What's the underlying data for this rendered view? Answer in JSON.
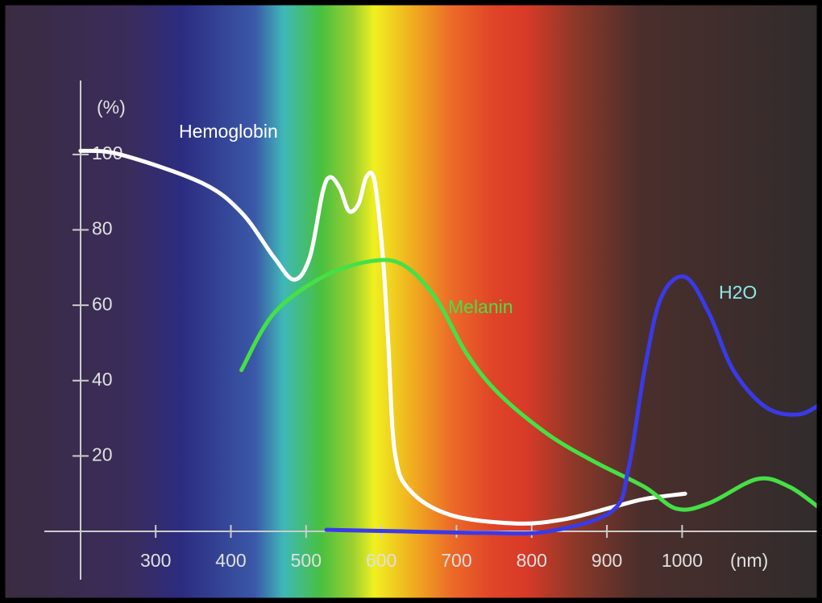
{
  "chart_data": {
    "type": "line",
    "axis_labels": {
      "y": "(%)",
      "x": "(nm)"
    },
    "annotations": [
      "Hemoglobin",
      "Melanin",
      "H2O"
    ],
    "xlim": [
      93,
      1186
    ],
    "ylim": [
      -19,
      141
    ],
    "xticks": [
      300,
      400,
      500,
      600,
      700,
      800,
      900,
      1000
    ],
    "yticks": [
      20,
      40,
      60,
      80,
      100
    ],
    "series": [
      {
        "name": "Hemoglobin",
        "color": "#ffffff",
        "x": [
          200,
          253,
          361,
          414,
          457,
          484,
          505,
          522,
          532,
          545,
          557,
          570,
          580,
          591,
          602,
          609,
          618,
          639,
          693,
          779,
          843,
          907,
          950,
          1004
        ],
        "values": [
          101,
          100,
          92.5,
          84.6,
          72.8,
          66.8,
          72.8,
          90,
          94,
          91,
          85,
          87,
          94,
          93,
          73,
          51,
          21,
          10.7,
          4.3,
          2.1,
          3.2,
          6.4,
          8.6,
          10
        ]
      },
      {
        "name": "Melanin",
        "color": "#46e046",
        "x": [
          414,
          457,
          522,
          586,
          629,
          672,
          714,
          757,
          822,
          886,
          950,
          993,
          1036,
          1100,
          1143,
          1184
        ],
        "values": [
          42.8,
          57.8,
          67.5,
          71.7,
          70.7,
          62,
          47,
          36.4,
          25.7,
          18.2,
          11.8,
          6,
          7.5,
          13.9,
          11.8,
          6
        ]
      },
      {
        "name": "H2O",
        "color": "#3a3ae8",
        "x": [
          527,
          629,
          736,
          822,
          907,
          929,
          950,
          972,
          1004,
          1036,
          1068,
          1111,
          1154,
          1186
        ],
        "values": [
          0.4,
          0,
          -0.4,
          0,
          5.4,
          17,
          42.8,
          62,
          67.5,
          57.8,
          42.8,
          33,
          31,
          34
        ]
      }
    ]
  }
}
